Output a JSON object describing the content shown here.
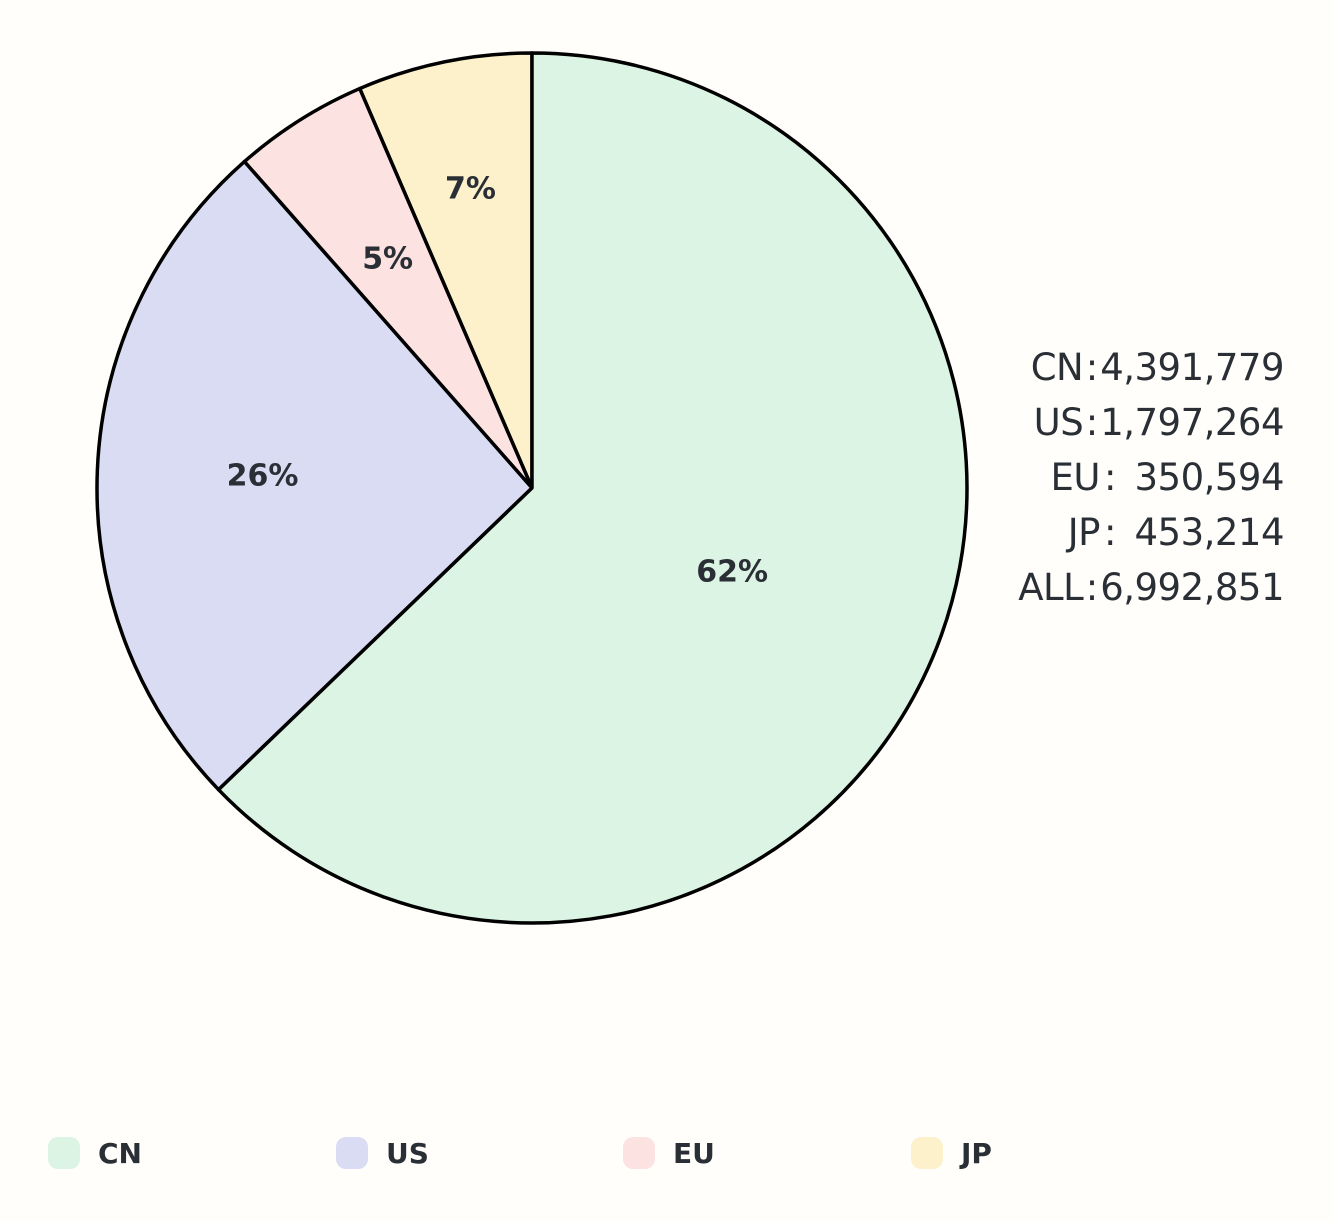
{
  "chart_data": {
    "type": "pie",
    "categories": [
      "CN",
      "US",
      "EU",
      "JP"
    ],
    "values": [
      4391779,
      1797264,
      350594,
      453214
    ],
    "percent_labels": [
      "62%",
      "26%",
      "5%",
      "7%"
    ],
    "colors": [
      "#dcf4e3",
      "#d9dcf3",
      "#fde2e2",
      "#fdf1cc"
    ],
    "legend_placement": "bottom",
    "start_angle_deg": 0,
    "direction": "counter-clockwise from top",
    "summary": [
      {
        "key": "CN",
        "sep": ":",
        "value": "4,391,779"
      },
      {
        "key": "US",
        "sep": ":",
        "value": "1,797,264"
      },
      {
        "key": "EU",
        "sep": ":",
        "value": "350,594"
      },
      {
        "key": "JP",
        "sep": ":",
        "value": "453,214"
      },
      {
        "key": "ALL",
        "sep": ":",
        "value": "6,992,851"
      }
    ]
  },
  "legend": {
    "items": [
      {
        "label": "CN",
        "color": "#dcf4e3"
      },
      {
        "label": "US",
        "color": "#d9dcf3"
      },
      {
        "label": "EU",
        "color": "#fde2e2"
      },
      {
        "label": "JP",
        "color": "#fdf1cc"
      }
    ]
  }
}
